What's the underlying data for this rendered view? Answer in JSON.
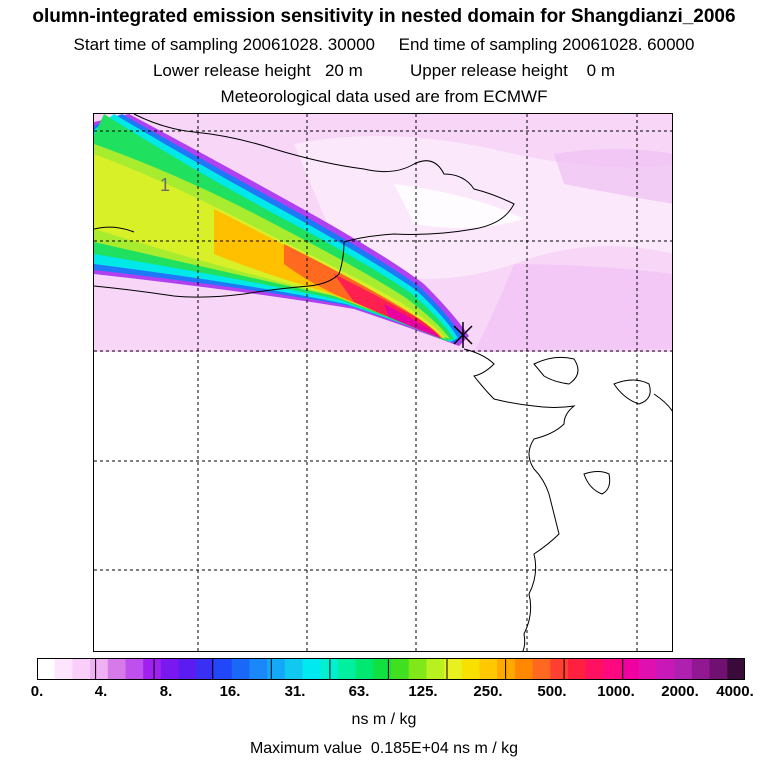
{
  "header": {
    "title": "olumn-integrated emission sensitivity in nested domain for Shangdianzi_2006",
    "sampling": "Start time of sampling 20061028. 30000     End time of sampling 20061028. 60000",
    "release": "Lower release height   20 m          Upper release height    0 m",
    "meteo": "Meteorological data used are from ECMWF"
  },
  "map": {
    "contour_label": "1",
    "release_marker": "release-site-cross"
  },
  "colorbar": {
    "ticks": [
      "0.",
      "4.",
      "8.",
      "16.",
      "31.",
      "63.",
      "125.",
      "250.",
      "500.",
      "1000.",
      "2000.",
      "4000."
    ],
    "colors": [
      "#ffffff",
      "#fde6fd",
      "#f9cff9",
      "#f0b0f4",
      "#d57ae8",
      "#c050ee",
      "#a020f0",
      "#7a18f0",
      "#5a1cf0",
      "#3a30f4",
      "#2048f8",
      "#1a68f8",
      "#1a88f8",
      "#14a8f8",
      "#10c8f0",
      "#00e8f0",
      "#00f0d0",
      "#00f0a0",
      "#00e870",
      "#10e040",
      "#40e020",
      "#80e818",
      "#b8f020",
      "#e8f020",
      "#f8e000",
      "#ffc800",
      "#ffa800",
      "#ff8800",
      "#ff6820",
      "#ff4030",
      "#ff2040",
      "#ff1060",
      "#ff0880",
      "#f000a0",
      "#e010b0",
      "#c818b8",
      "#b020b0",
      "#901890",
      "#701070",
      "#3a0a3a"
    ],
    "units": "ns m / kg",
    "max_value": "Maximum value  0.185E+04 ns m / kg"
  }
}
